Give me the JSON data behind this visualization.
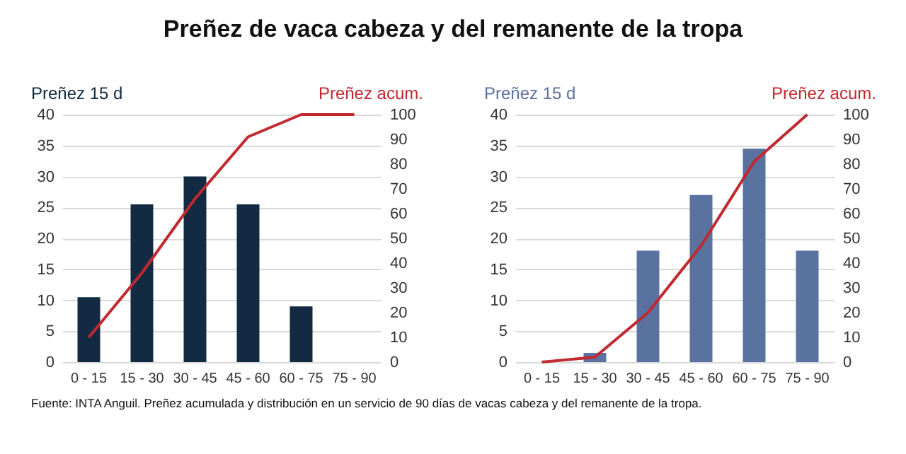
{
  "chart_data": [
    {
      "type": "bar",
      "title": "Preñez de vaca cabeza y del remanente de la tropa",
      "categories": [
        "0 - 15",
        "15 - 30",
        "30 - 45",
        "45 - 60",
        "60 - 75",
        "75 - 90"
      ],
      "series": [
        {
          "name": "Preñez 15 d",
          "color": "#132a43",
          "values": [
            10.5,
            25.5,
            30,
            25.5,
            9,
            0
          ]
        },
        {
          "name": "Preñez acum.",
          "type": "line",
          "axis": "y2",
          "color": "#c0292f",
          "values": [
            10,
            36,
            66,
            91,
            100,
            100
          ]
        }
      ],
      "ylim": [
        0,
        40
      ],
      "yticks": [
        0,
        5,
        10,
        15,
        20,
        25,
        30,
        35,
        40
      ],
      "y2lim": [
        0,
        100
      ],
      "y2ticks": [
        0,
        10,
        20,
        30,
        40,
        50,
        60,
        70,
        80,
        90,
        100
      ],
      "grid": "y"
    },
    {
      "type": "bar",
      "categories": [
        "0 - 15",
        "15 - 30",
        "30 - 45",
        "45 - 60",
        "60 - 75",
        "75 - 90"
      ],
      "series": [
        {
          "name": "Preñez 15 d",
          "color": "#5a72a0",
          "values": [
            0,
            1.5,
            18,
            27,
            34.5,
            18
          ]
        },
        {
          "name": "Preñez acum.",
          "type": "line",
          "axis": "y2",
          "color": "#c0292f",
          "values": [
            0,
            2,
            20,
            47,
            81,
            100
          ]
        }
      ],
      "ylim": [
        0,
        40
      ],
      "yticks": [
        0,
        5,
        10,
        15,
        20,
        25,
        30,
        35,
        40
      ],
      "y2lim": [
        0,
        100
      ],
      "y2ticks": [
        0,
        10,
        20,
        30,
        40,
        50,
        60,
        70,
        80,
        90,
        100
      ],
      "grid": "y",
      "annotations": [
        "Fuente: INTA Anguil. Preñez acumulada y distribución en un servicio de 90 días de vacas cabeza y del remanente de la tropa."
      ]
    }
  ]
}
